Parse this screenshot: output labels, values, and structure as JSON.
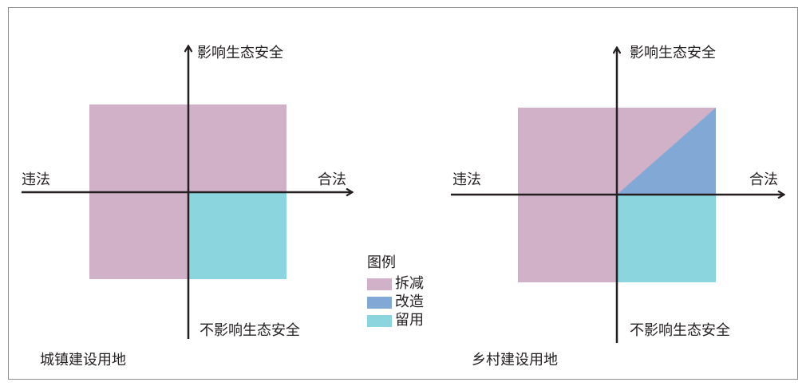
{
  "colors": {
    "demolish": "#d1b1c8",
    "renovate": "#82a9d6",
    "retain": "#8bd5df",
    "axis": "#231f20"
  },
  "legend": {
    "title": "图例",
    "items": [
      {
        "label": "拆减",
        "color": "#d1b1c8"
      },
      {
        "label": "改造",
        "color": "#82a9d6"
      },
      {
        "label": "留用",
        "color": "#8bd5df"
      }
    ]
  },
  "left_diagram": {
    "caption": "城镇建设用地",
    "axis_top": "影响生态安全",
    "axis_bottom": "不影响生态安全",
    "axis_left": "违法",
    "axis_right": "合法"
  },
  "right_diagram": {
    "caption": "乡村建设用地",
    "axis_top": "影响生态安全",
    "axis_bottom": "不影响生态安全",
    "axis_left": "违法",
    "axis_right": "合法"
  }
}
